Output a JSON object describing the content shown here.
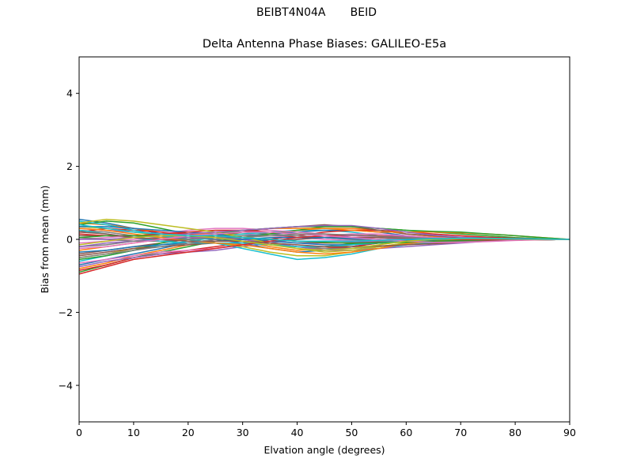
{
  "figure": {
    "suptitle_left": "BEIBT4N04A",
    "suptitle_right": "BEID"
  },
  "chart_data": {
    "type": "line",
    "title": "Delta Antenna Phase Biases: GALILEO-E5a",
    "xlabel": "Elvation angle (degrees)",
    "ylabel": "Bias from mean (mm)",
    "xlim": [
      0,
      90
    ],
    "ylim": [
      -5,
      5
    ],
    "xticks": [
      0,
      10,
      20,
      30,
      40,
      50,
      60,
      70,
      80,
      90
    ],
    "yticks": [
      -4,
      -2,
      0,
      2,
      4
    ],
    "grid": false,
    "legend": "none",
    "x": [
      0,
      5,
      10,
      15,
      20,
      25,
      30,
      35,
      40,
      45,
      50,
      55,
      60,
      65,
      70,
      75,
      80,
      85,
      90
    ],
    "series": [
      {
        "color": "#1f77b4",
        "values": [
          0.55,
          0.45,
          0.3,
          0.15,
          0.05,
          0.0,
          -0.1,
          -0.25,
          -0.35,
          -0.3,
          -0.2,
          -0.1,
          -0.02,
          0.02,
          0.04,
          0.04,
          0.03,
          0.02,
          0.0
        ]
      },
      {
        "color": "#ff7f0e",
        "values": [
          0.45,
          0.4,
          0.3,
          0.2,
          0.1,
          0.05,
          -0.05,
          -0.2,
          -0.3,
          -0.25,
          -0.15,
          -0.05,
          0.02,
          0.05,
          0.06,
          0.05,
          0.03,
          0.01,
          0.0
        ]
      },
      {
        "color": "#2ca02c",
        "values": [
          0.4,
          0.5,
          0.45,
          0.3,
          0.15,
          0.05,
          -0.05,
          -0.15,
          -0.2,
          -0.2,
          -0.12,
          -0.05,
          0.0,
          0.03,
          0.05,
          0.05,
          0.03,
          0.01,
          0.0
        ]
      },
      {
        "color": "#d62728",
        "values": [
          0.2,
          0.3,
          0.25,
          0.2,
          0.15,
          0.1,
          0.0,
          -0.1,
          -0.2,
          -0.25,
          -0.2,
          -0.1,
          -0.05,
          0.0,
          0.03,
          0.03,
          0.02,
          0.01,
          0.0
        ]
      },
      {
        "color": "#9467bd",
        "values": [
          0.3,
          0.25,
          0.2,
          0.15,
          0.1,
          0.05,
          0.0,
          -0.05,
          -0.1,
          -0.1,
          -0.08,
          -0.05,
          -0.02,
          0.0,
          0.02,
          0.02,
          0.01,
          0.01,
          0.0
        ]
      },
      {
        "color": "#8c564b",
        "values": [
          0.1,
          0.1,
          0.05,
          0.0,
          0.0,
          0.05,
          0.05,
          0.0,
          -0.05,
          -0.1,
          -0.1,
          -0.08,
          -0.05,
          -0.03,
          -0.01,
          0.0,
          0.0,
          0.0,
          0.0
        ]
      },
      {
        "color": "#e377c2",
        "values": [
          -0.1,
          -0.05,
          0.0,
          0.05,
          0.1,
          0.15,
          0.15,
          0.1,
          0.05,
          0.0,
          -0.03,
          -0.05,
          -0.05,
          -0.04,
          -0.03,
          -0.02,
          -0.01,
          0.0,
          0.0
        ]
      },
      {
        "color": "#7f7f7f",
        "values": [
          -0.2,
          -0.15,
          -0.05,
          0.05,
          0.15,
          0.2,
          0.2,
          0.15,
          0.1,
          0.05,
          0.0,
          -0.05,
          -0.08,
          -0.08,
          -0.06,
          -0.04,
          -0.02,
          -0.01,
          0.0
        ]
      },
      {
        "color": "#bcbd22",
        "values": [
          -0.5,
          -0.4,
          -0.25,
          -0.1,
          0.0,
          0.1,
          0.15,
          0.2,
          0.2,
          0.15,
          0.1,
          0.05,
          0.0,
          -0.03,
          -0.04,
          -0.03,
          -0.02,
          -0.01,
          0.0
        ]
      },
      {
        "color": "#17becf",
        "values": [
          -0.6,
          -0.45,
          -0.3,
          -0.15,
          -0.05,
          0.05,
          0.15,
          0.2,
          0.25,
          0.25,
          0.2,
          0.1,
          0.05,
          0.0,
          -0.02,
          -0.03,
          -0.02,
          -0.01,
          0.0
        ]
      },
      {
        "color": "#1f77b4",
        "values": [
          -0.7,
          -0.55,
          -0.4,
          -0.25,
          -0.1,
          0.0,
          0.1,
          0.15,
          0.2,
          0.25,
          0.25,
          0.2,
          0.1,
          0.05,
          0.0,
          -0.02,
          -0.02,
          -0.01,
          0.0
        ]
      },
      {
        "color": "#ff7f0e",
        "values": [
          -0.8,
          -0.65,
          -0.45,
          -0.3,
          -0.15,
          -0.05,
          0.05,
          0.15,
          0.25,
          0.3,
          0.3,
          0.25,
          0.15,
          0.08,
          0.03,
          0.0,
          -0.01,
          0.0,
          0.0
        ]
      },
      {
        "color": "#2ca02c",
        "values": [
          -0.9,
          -0.7,
          -0.5,
          -0.35,
          -0.2,
          -0.05,
          0.05,
          0.15,
          0.25,
          0.35,
          0.35,
          0.3,
          0.25,
          0.2,
          0.15,
          0.1,
          0.05,
          0.02,
          0.0
        ]
      },
      {
        "color": "#d62728",
        "values": [
          -0.85,
          -0.7,
          -0.5,
          -0.4,
          -0.3,
          -0.2,
          -0.1,
          0.0,
          0.1,
          0.2,
          0.25,
          0.25,
          0.2,
          0.15,
          0.1,
          0.06,
          0.03,
          0.01,
          0.0
        ]
      },
      {
        "color": "#9467bd",
        "values": [
          -0.75,
          -0.6,
          -0.5,
          -0.4,
          -0.35,
          -0.3,
          -0.2,
          -0.1,
          0.0,
          0.05,
          0.1,
          0.1,
          0.08,
          0.05,
          0.03,
          0.02,
          0.01,
          0.0,
          0.0
        ]
      },
      {
        "color": "#8c564b",
        "values": [
          -0.4,
          -0.3,
          -0.2,
          -0.1,
          0.0,
          0.1,
          0.2,
          0.3,
          0.35,
          0.4,
          0.35,
          0.25,
          0.15,
          0.1,
          0.05,
          0.03,
          0.01,
          0.0,
          0.0
        ]
      },
      {
        "color": "#e377c2",
        "values": [
          0.0,
          0.05,
          0.1,
          0.15,
          0.25,
          0.3,
          0.3,
          0.25,
          0.2,
          0.15,
          0.1,
          0.05,
          0.0,
          -0.02,
          -0.03,
          -0.02,
          -0.01,
          0.0,
          0.0
        ]
      },
      {
        "color": "#7f7f7f",
        "values": [
          0.25,
          0.2,
          0.1,
          0.05,
          0.05,
          0.05,
          0.0,
          -0.1,
          -0.2,
          -0.25,
          -0.25,
          -0.2,
          -0.15,
          -0.1,
          -0.06,
          -0.03,
          -0.01,
          0.0,
          0.0
        ]
      },
      {
        "color": "#bcbd22",
        "values": [
          0.35,
          0.3,
          0.2,
          0.1,
          0.0,
          -0.1,
          -0.2,
          -0.35,
          -0.45,
          -0.45,
          -0.35,
          -0.2,
          -0.1,
          -0.05,
          -0.02,
          0.0,
          0.0,
          0.0,
          0.0
        ]
      },
      {
        "color": "#17becf",
        "values": [
          0.5,
          0.4,
          0.25,
          0.1,
          0.0,
          -0.1,
          -0.25,
          -0.4,
          -0.55,
          -0.5,
          -0.4,
          -0.25,
          -0.15,
          -0.08,
          -0.04,
          -0.02,
          -0.01,
          0.0,
          0.0
        ]
      },
      {
        "color": "#1f77b4",
        "values": [
          0.35,
          0.35,
          0.3,
          0.25,
          0.2,
          0.15,
          0.05,
          -0.05,
          -0.1,
          -0.15,
          -0.15,
          -0.1,
          -0.05,
          0.0,
          0.02,
          0.02,
          0.01,
          0.0,
          0.0
        ]
      },
      {
        "color": "#ff7f0e",
        "values": [
          -0.3,
          -0.2,
          -0.1,
          0.0,
          0.1,
          0.2,
          0.25,
          0.3,
          0.3,
          0.3,
          0.25,
          0.2,
          0.2,
          0.2,
          0.18,
          0.15,
          0.1,
          0.05,
          0.0
        ]
      },
      {
        "color": "#2ca02c",
        "values": [
          -0.55,
          -0.45,
          -0.3,
          -0.1,
          0.05,
          0.15,
          0.25,
          0.3,
          0.35,
          0.35,
          0.35,
          0.3,
          0.25,
          0.22,
          0.2,
          0.15,
          0.1,
          0.05,
          0.0
        ]
      },
      {
        "color": "#d62728",
        "values": [
          0.15,
          0.1,
          0.1,
          0.15,
          0.2,
          0.25,
          0.25,
          0.2,
          0.15,
          0.1,
          0.05,
          0.0,
          -0.05,
          -0.05,
          -0.04,
          -0.03,
          -0.02,
          -0.01,
          0.0
        ]
      },
      {
        "color": "#9467bd",
        "values": [
          -0.2,
          -0.1,
          -0.05,
          0.0,
          0.05,
          0.05,
          0.0,
          -0.1,
          -0.2,
          -0.3,
          -0.3,
          -0.25,
          -0.2,
          -0.15,
          -0.1,
          -0.05,
          -0.02,
          -0.01,
          0.0
        ]
      },
      {
        "color": "#8c564b",
        "values": [
          -0.45,
          -0.35,
          -0.25,
          -0.2,
          -0.15,
          -0.1,
          -0.1,
          -0.05,
          0.0,
          0.05,
          0.05,
          0.05,
          0.03,
          0.02,
          0.01,
          0.0,
          0.0,
          0.0,
          0.0
        ]
      },
      {
        "color": "#e377c2",
        "values": [
          -0.65,
          -0.55,
          -0.45,
          -0.35,
          -0.3,
          -0.25,
          -0.15,
          -0.05,
          0.05,
          0.1,
          0.15,
          0.15,
          0.1,
          0.05,
          0.02,
          0.0,
          0.0,
          0.0,
          0.0
        ]
      },
      {
        "color": "#7f7f7f",
        "values": [
          0.05,
          0.0,
          -0.05,
          -0.05,
          0.0,
          0.05,
          0.1,
          0.1,
          0.1,
          0.05,
          0.0,
          -0.05,
          -0.08,
          -0.08,
          -0.06,
          -0.04,
          -0.02,
          -0.01,
          0.0
        ]
      },
      {
        "color": "#bcbd22",
        "values": [
          0.45,
          0.55,
          0.5,
          0.4,
          0.3,
          0.2,
          0.05,
          -0.1,
          -0.25,
          -0.35,
          -0.3,
          -0.2,
          -0.1,
          -0.05,
          0.0,
          0.02,
          0.02,
          0.01,
          0.0
        ]
      },
      {
        "color": "#17becf",
        "values": [
          0.25,
          0.15,
          0.05,
          -0.05,
          -0.1,
          -0.1,
          -0.1,
          -0.15,
          -0.2,
          -0.2,
          -0.15,
          -0.1,
          -0.05,
          -0.02,
          0.0,
          0.0,
          0.0,
          0.0,
          0.0
        ]
      },
      {
        "color": "#1f77b4",
        "values": [
          -0.35,
          -0.3,
          -0.2,
          -0.15,
          -0.1,
          -0.05,
          0.0,
          0.05,
          0.05,
          0.05,
          0.02,
          0.0,
          -0.02,
          -0.02,
          -0.02,
          -0.01,
          0.0,
          0.0,
          0.0
        ]
      },
      {
        "color": "#ff7f0e",
        "values": [
          0.3,
          0.25,
          0.15,
          0.05,
          -0.05,
          -0.1,
          -0.15,
          -0.25,
          -0.35,
          -0.4,
          -0.35,
          -0.25,
          -0.12,
          -0.05,
          -0.02,
          0.0,
          0.0,
          0.0,
          0.0
        ]
      },
      {
        "color": "#2ca02c",
        "values": [
          0.05,
          0.1,
          0.1,
          0.1,
          0.1,
          0.1,
          0.05,
          0.0,
          -0.05,
          -0.08,
          -0.1,
          -0.1,
          -0.08,
          -0.05,
          -0.03,
          -0.02,
          -0.01,
          0.0,
          0.0
        ]
      },
      {
        "color": "#d62728",
        "values": [
          -0.95,
          -0.75,
          -0.55,
          -0.45,
          -0.35,
          -0.25,
          -0.15,
          -0.05,
          0.05,
          0.1,
          0.12,
          0.1,
          0.05,
          0.02,
          0.0,
          -0.01,
          -0.01,
          0.0,
          0.0
        ]
      },
      {
        "color": "#9467bd",
        "values": [
          0.0,
          0.0,
          0.05,
          0.1,
          0.15,
          0.2,
          0.25,
          0.3,
          0.35,
          0.38,
          0.38,
          0.3,
          0.2,
          0.12,
          0.06,
          0.03,
          0.01,
          0.0,
          0.0
        ]
      },
      {
        "color": "#8c564b",
        "values": [
          0.2,
          0.15,
          0.05,
          0.0,
          -0.05,
          -0.05,
          -0.05,
          -0.1,
          -0.15,
          -0.2,
          -0.2,
          -0.18,
          -0.15,
          -0.12,
          -0.08,
          -0.05,
          -0.02,
          -0.01,
          0.0
        ]
      },
      {
        "color": "#e377c2",
        "values": [
          -0.25,
          -0.2,
          -0.1,
          0.0,
          0.1,
          0.15,
          0.2,
          0.2,
          0.15,
          0.1,
          0.05,
          0.0,
          -0.05,
          -0.08,
          -0.08,
          -0.06,
          -0.03,
          -0.01,
          0.0
        ]
      },
      {
        "color": "#7f7f7f",
        "values": [
          -0.5,
          -0.4,
          -0.3,
          -0.2,
          -0.1,
          0.0,
          0.05,
          0.1,
          0.15,
          0.15,
          0.12,
          0.08,
          0.05,
          0.03,
          0.02,
          0.01,
          0.0,
          0.0,
          0.0
        ]
      },
      {
        "color": "#bcbd22",
        "values": [
          -0.15,
          -0.05,
          0.05,
          0.1,
          0.1,
          0.05,
          -0.05,
          -0.15,
          -0.25,
          -0.3,
          -0.25,
          -0.15,
          -0.05,
          0.0,
          0.02,
          0.02,
          0.01,
          0.0,
          0.0
        ]
      },
      {
        "color": "#17becf",
        "values": [
          0.4,
          0.3,
          0.2,
          0.15,
          0.1,
          0.1,
          0.05,
          0.0,
          -0.05,
          -0.05,
          -0.05,
          -0.03,
          0.0,
          0.02,
          0.03,
          0.03,
          0.02,
          0.01,
          0.0
        ]
      }
    ]
  }
}
